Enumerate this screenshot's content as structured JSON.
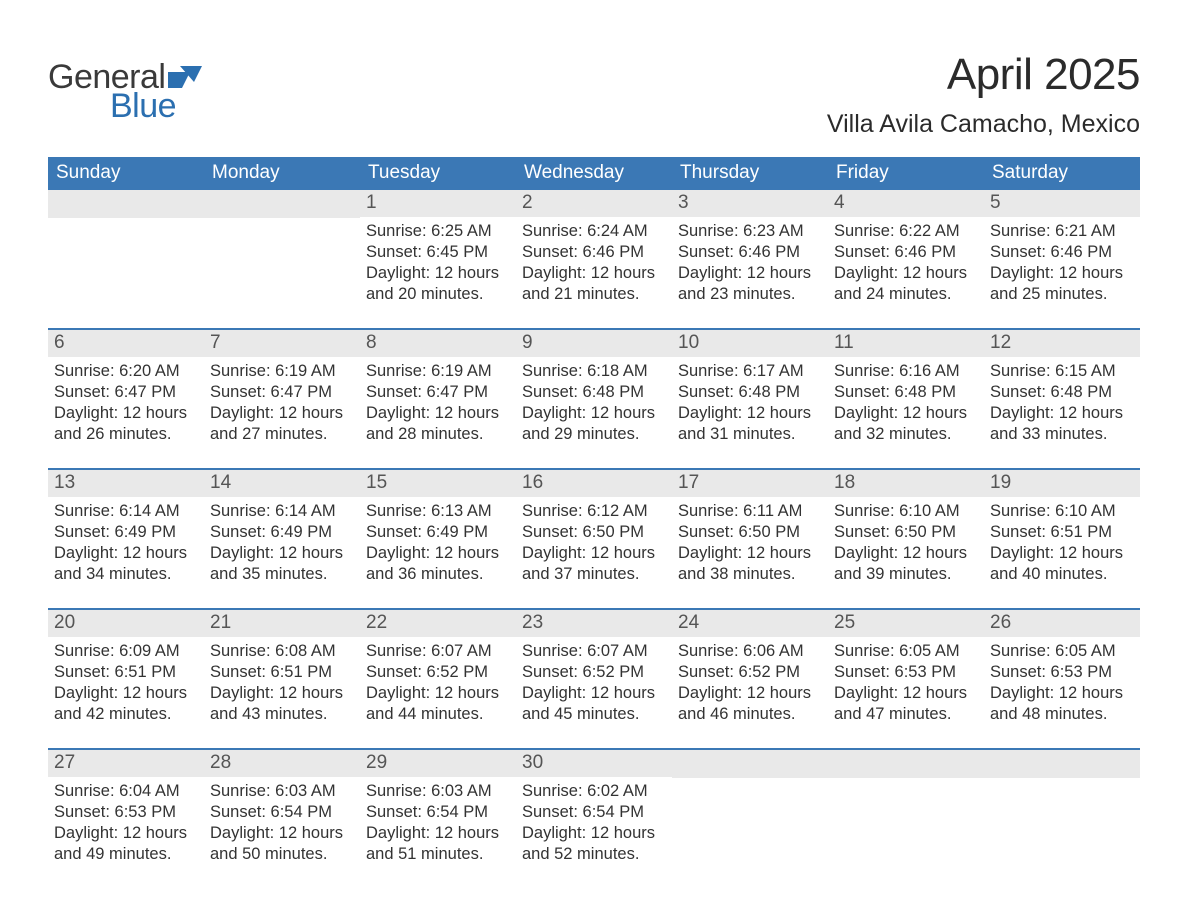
{
  "logo": {
    "text1": "General",
    "text2": "Blue",
    "flag_color": "#2b6fb0"
  },
  "title": "April 2025",
  "location": "Villa Avila Camacho, Mexico",
  "colors": {
    "header_bg": "#3b78b5",
    "header_text": "#ffffff",
    "daynum_bg": "#e9e9e9",
    "daynum_text": "#555555",
    "body_text": "#333333",
    "rule": "#3b78b5",
    "logo_blue": "#2b6fb0",
    "logo_gray": "#3a3a3a",
    "page_bg": "#ffffff"
  },
  "weekdays": [
    "Sunday",
    "Monday",
    "Tuesday",
    "Wednesday",
    "Thursday",
    "Friday",
    "Saturday"
  ],
  "weeks": [
    [
      null,
      null,
      {
        "n": "1",
        "sunrise": "6:25 AM",
        "sunset": "6:45 PM",
        "dl": "12 hours and 20 minutes."
      },
      {
        "n": "2",
        "sunrise": "6:24 AM",
        "sunset": "6:46 PM",
        "dl": "12 hours and 21 minutes."
      },
      {
        "n": "3",
        "sunrise": "6:23 AM",
        "sunset": "6:46 PM",
        "dl": "12 hours and 23 minutes."
      },
      {
        "n": "4",
        "sunrise": "6:22 AM",
        "sunset": "6:46 PM",
        "dl": "12 hours and 24 minutes."
      },
      {
        "n": "5",
        "sunrise": "6:21 AM",
        "sunset": "6:46 PM",
        "dl": "12 hours and 25 minutes."
      }
    ],
    [
      {
        "n": "6",
        "sunrise": "6:20 AM",
        "sunset": "6:47 PM",
        "dl": "12 hours and 26 minutes."
      },
      {
        "n": "7",
        "sunrise": "6:19 AM",
        "sunset": "6:47 PM",
        "dl": "12 hours and 27 minutes."
      },
      {
        "n": "8",
        "sunrise": "6:19 AM",
        "sunset": "6:47 PM",
        "dl": "12 hours and 28 minutes."
      },
      {
        "n": "9",
        "sunrise": "6:18 AM",
        "sunset": "6:48 PM",
        "dl": "12 hours and 29 minutes."
      },
      {
        "n": "10",
        "sunrise": "6:17 AM",
        "sunset": "6:48 PM",
        "dl": "12 hours and 31 minutes."
      },
      {
        "n": "11",
        "sunrise": "6:16 AM",
        "sunset": "6:48 PM",
        "dl": "12 hours and 32 minutes."
      },
      {
        "n": "12",
        "sunrise": "6:15 AM",
        "sunset": "6:48 PM",
        "dl": "12 hours and 33 minutes."
      }
    ],
    [
      {
        "n": "13",
        "sunrise": "6:14 AM",
        "sunset": "6:49 PM",
        "dl": "12 hours and 34 minutes."
      },
      {
        "n": "14",
        "sunrise": "6:14 AM",
        "sunset": "6:49 PM",
        "dl": "12 hours and 35 minutes."
      },
      {
        "n": "15",
        "sunrise": "6:13 AM",
        "sunset": "6:49 PM",
        "dl": "12 hours and 36 minutes."
      },
      {
        "n": "16",
        "sunrise": "6:12 AM",
        "sunset": "6:50 PM",
        "dl": "12 hours and 37 minutes."
      },
      {
        "n": "17",
        "sunrise": "6:11 AM",
        "sunset": "6:50 PM",
        "dl": "12 hours and 38 minutes."
      },
      {
        "n": "18",
        "sunrise": "6:10 AM",
        "sunset": "6:50 PM",
        "dl": "12 hours and 39 minutes."
      },
      {
        "n": "19",
        "sunrise": "6:10 AM",
        "sunset": "6:51 PM",
        "dl": "12 hours and 40 minutes."
      }
    ],
    [
      {
        "n": "20",
        "sunrise": "6:09 AM",
        "sunset": "6:51 PM",
        "dl": "12 hours and 42 minutes."
      },
      {
        "n": "21",
        "sunrise": "6:08 AM",
        "sunset": "6:51 PM",
        "dl": "12 hours and 43 minutes."
      },
      {
        "n": "22",
        "sunrise": "6:07 AM",
        "sunset": "6:52 PM",
        "dl": "12 hours and 44 minutes."
      },
      {
        "n": "23",
        "sunrise": "6:07 AM",
        "sunset": "6:52 PM",
        "dl": "12 hours and 45 minutes."
      },
      {
        "n": "24",
        "sunrise": "6:06 AM",
        "sunset": "6:52 PM",
        "dl": "12 hours and 46 minutes."
      },
      {
        "n": "25",
        "sunrise": "6:05 AM",
        "sunset": "6:53 PM",
        "dl": "12 hours and 47 minutes."
      },
      {
        "n": "26",
        "sunrise": "6:05 AM",
        "sunset": "6:53 PM",
        "dl": "12 hours and 48 minutes."
      }
    ],
    [
      {
        "n": "27",
        "sunrise": "6:04 AM",
        "sunset": "6:53 PM",
        "dl": "12 hours and 49 minutes."
      },
      {
        "n": "28",
        "sunrise": "6:03 AM",
        "sunset": "6:54 PM",
        "dl": "12 hours and 50 minutes."
      },
      {
        "n": "29",
        "sunrise": "6:03 AM",
        "sunset": "6:54 PM",
        "dl": "12 hours and 51 minutes."
      },
      {
        "n": "30",
        "sunrise": "6:02 AM",
        "sunset": "6:54 PM",
        "dl": "12 hours and 52 minutes."
      },
      null,
      null,
      null
    ]
  ],
  "labels": {
    "sunrise": "Sunrise: ",
    "sunset": "Sunset: ",
    "daylight": "Daylight: "
  }
}
